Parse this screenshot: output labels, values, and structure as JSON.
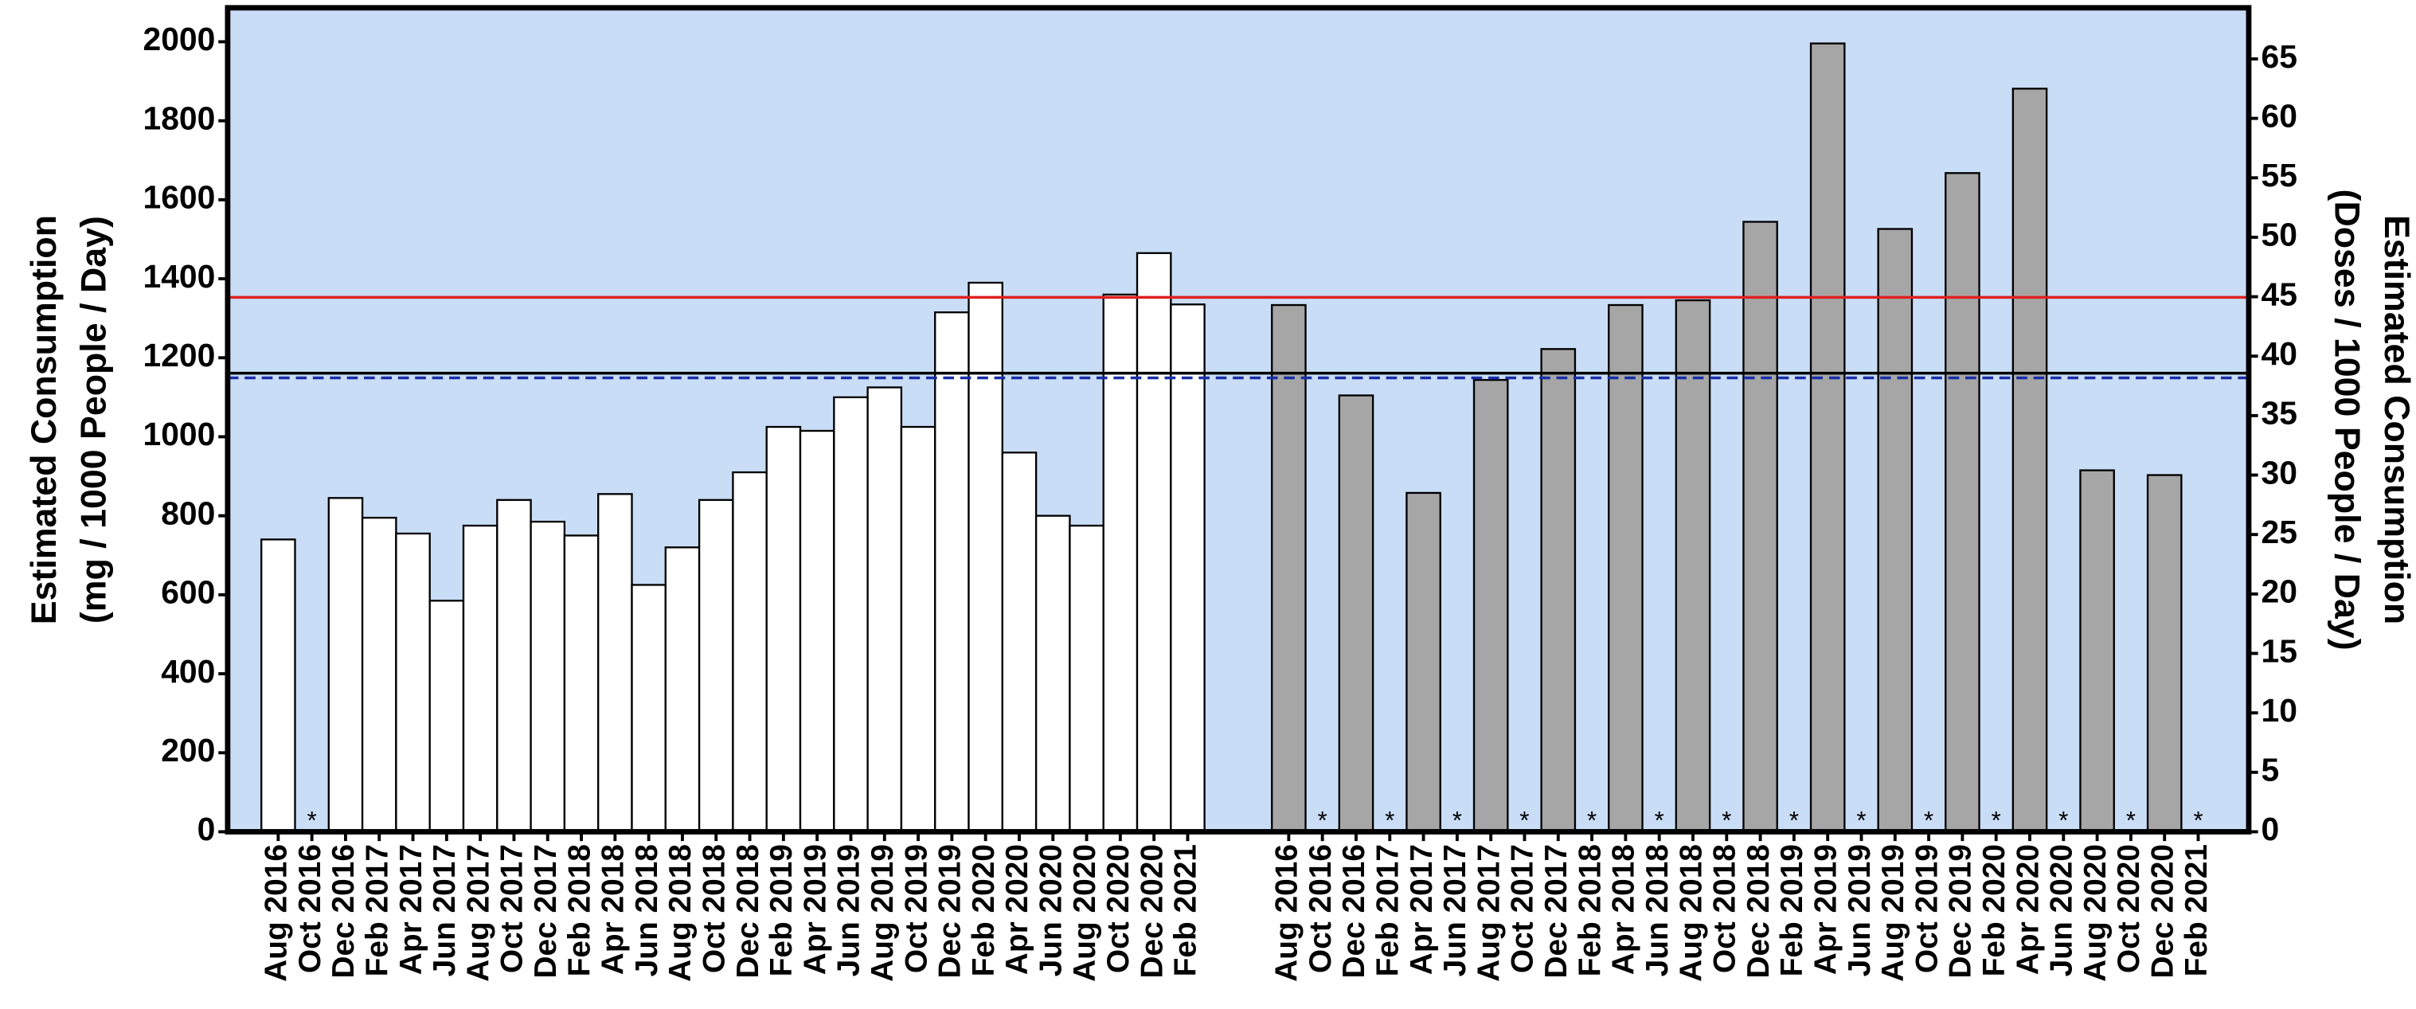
{
  "chart_data": {
    "type": "bar",
    "ylabel": [
      "Estimated Consumption",
      "(mg / 1000 People / Day)"
    ],
    "y2label": [
      "Estimated Consumption",
      "(Doses / 1000 People / Day)"
    ],
    "categories": [
      "Aug 2016",
      "Oct 2016",
      "Dec 2016",
      "Feb 2017",
      "Apr 2017",
      "Jun 2017",
      "Aug 2017",
      "Oct 2017",
      "Dec 2017",
      "Feb 2018",
      "Apr 2018",
      "Jun 2018",
      "Aug 2018",
      "Oct 2018",
      "Dec 2018",
      "Feb 2019",
      "Apr 2019",
      "Jun 2019",
      "Aug 2019",
      "Oct 2019",
      "Dec 2019",
      "Feb 2020",
      "Apr 2020",
      "Jun 2020",
      "Aug 2020",
      "Oct 2020",
      "Dec 2020",
      "Feb 2021",
      null,
      null,
      "Aug 2016",
      "Oct 2016",
      "Dec 2016",
      "Feb 2017",
      "Apr 2017",
      "Jun 2017",
      "Aug 2017",
      "Oct 2017",
      "Dec 2017",
      "Feb 2018",
      "Apr 2018",
      "Jun 2018",
      "Aug 2018",
      "Oct 2018",
      "Dec 2018",
      "Feb 2019",
      "Apr 2019",
      "Jun 2019",
      "Aug 2019",
      "Oct 2019",
      "Dec 2019",
      "Feb 2020",
      "Apr 2020",
      "Jun 2020",
      "Aug 2020",
      "Oct 2020",
      "Dec 2020",
      "Feb 2021"
    ],
    "series": [
      {
        "color": "#ffffff",
        "axis": "y",
        "values": [
          740,
          null,
          845,
          795,
          755,
          585,
          775,
          840,
          785,
          750,
          855,
          625,
          720,
          840,
          910,
          1025,
          1015,
          1100,
          1125,
          1025,
          1315,
          1390,
          960,
          800,
          775,
          1360,
          1465,
          1335,
          null,
          null,
          null,
          null,
          null,
          null,
          null,
          null,
          null,
          null,
          null,
          null,
          null,
          null,
          null,
          null,
          null,
          null,
          null,
          null,
          null,
          null,
          null,
          null,
          null,
          null,
          null,
          null,
          null,
          null
        ]
      },
      {
        "color": "#a6a6a6",
        "axis": "y2",
        "values": [
          null,
          null,
          null,
          null,
          null,
          null,
          null,
          null,
          null,
          null,
          null,
          null,
          null,
          null,
          null,
          null,
          null,
          null,
          null,
          null,
          null,
          null,
          null,
          null,
          null,
          null,
          null,
          null,
          null,
          null,
          44.3,
          null,
          36.7,
          null,
          28.5,
          null,
          38.0,
          null,
          40.6,
          null,
          44.3,
          null,
          44.7,
          null,
          51.3,
          null,
          66.3,
          null,
          50.7,
          null,
          55.4,
          null,
          62.5,
          null,
          30.4,
          null,
          30.0,
          null
        ]
      }
    ],
    "no_data_label": "*",
    "no_data_indices": [
      1,
      31,
      33,
      35,
      37,
      39,
      41,
      43,
      45,
      47,
      49,
      51,
      53,
      55,
      57
    ],
    "reference_lines": [
      {
        "value": 1353,
        "color": "#e02020",
        "style": "solid"
      },
      {
        "value": 1161,
        "color": "#000000",
        "style": "solid"
      },
      {
        "value": 1149,
        "color": "#1a2ea8",
        "style": "dashed"
      }
    ],
    "background": "#c9ddf6",
    "ylim": [
      0,
      2086
    ],
    "yticks": [
      0,
      200,
      400,
      600,
      800,
      1000,
      1200,
      1400,
      1600,
      1800,
      2000
    ],
    "y2lim": [
      0,
      69.3
    ],
    "y2ticks": [
      0,
      5,
      10,
      15,
      20,
      25,
      30,
      35,
      40,
      45,
      50,
      55,
      60,
      65
    ]
  }
}
